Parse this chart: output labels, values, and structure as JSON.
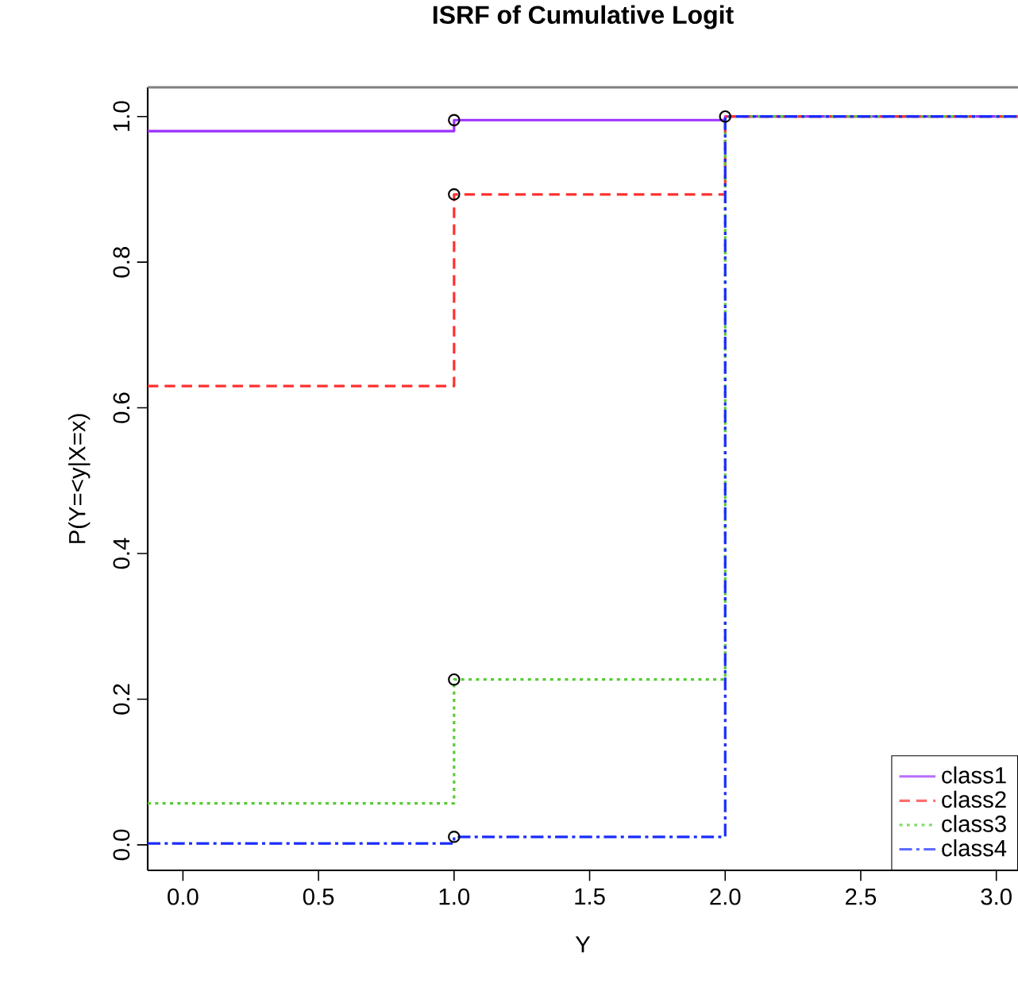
{
  "chart_data": {
    "type": "step",
    "title": "ISRF of Cumulative Logit",
    "xlabel": "Y",
    "ylabel": "P(Y=<y|X=x)",
    "xlim": [
      -0.13,
      3.08
    ],
    "ylim": [
      -0.035,
      1.04
    ],
    "xticks": [
      {
        "value": 0,
        "label": "0.0"
      },
      {
        "value": 0.5,
        "label": "0.5"
      },
      {
        "value": 1,
        "label": "1.0"
      },
      {
        "value": 1.5,
        "label": "1.5"
      },
      {
        "value": 2,
        "label": "2.0"
      },
      {
        "value": 2.5,
        "label": "2.5"
      },
      {
        "value": 3,
        "label": "3.0"
      }
    ],
    "yticks": [
      {
        "value": 0,
        "label": "0.0"
      },
      {
        "value": 0.2,
        "label": "0.2"
      },
      {
        "value": 0.4,
        "label": "0.4"
      },
      {
        "value": 0.6,
        "label": "0.6"
      },
      {
        "value": 0.8,
        "label": "0.8"
      },
      {
        "value": 1,
        "label": "1.0"
      }
    ],
    "legend": "bottom right",
    "series": [
      {
        "name": "class1",
        "color": "#9b30ff",
        "line_style": "solid",
        "x": [
          -0.13,
          1,
          2,
          3.08
        ],
        "values": [
          0.98,
          0.995,
          1.0,
          1.0
        ]
      },
      {
        "name": "class2",
        "color": "#ff3030",
        "line_style": "dashed",
        "x": [
          -0.13,
          1,
          2,
          3.08
        ],
        "values": [
          0.63,
          0.893,
          1.0,
          1.0
        ]
      },
      {
        "name": "class3",
        "color": "#55cc33",
        "line_style": "dotted",
        "x": [
          -0.13,
          1,
          2,
          3.08
        ],
        "values": [
          0.057,
          0.227,
          1.0,
          1.0
        ]
      },
      {
        "name": "class4",
        "color": "#1a2cff",
        "line_style": "dashdot",
        "x": [
          -0.13,
          1,
          2,
          3.08
        ],
        "values": [
          0.002,
          0.011,
          1.0,
          1.0
        ]
      },
      {
        "type": "scatter",
        "color": "#000000",
        "marker": "circle",
        "x": [
          1,
          1,
          1,
          1,
          2
        ],
        "values": [
          0.995,
          0.893,
          0.227,
          0.011,
          1.0
        ]
      }
    ]
  }
}
